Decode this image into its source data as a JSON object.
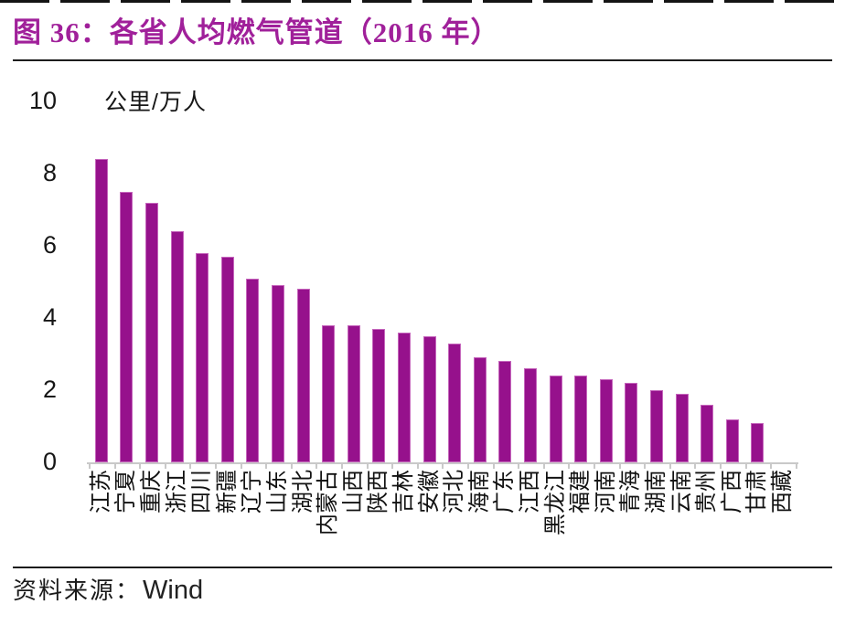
{
  "figure": {
    "title": "图 36：各省人均燃气管道（2016 年）",
    "title_color": "#a0209a",
    "footer_prefix": "资料来源：",
    "footer_source": "Wind"
  },
  "chart_data": {
    "type": "bar",
    "title": "图 36：各省人均燃气管道（2016 年）",
    "unit_label": "公里/万人",
    "categories": [
      "江苏",
      "宁夏",
      "重庆",
      "浙江",
      "四川",
      "新疆",
      "辽宁",
      "山东",
      "湖北",
      "内蒙古",
      "山西",
      "陕西",
      "吉林",
      "安徽",
      "河北",
      "海南",
      "广东",
      "江西",
      "黑龙江",
      "福建",
      "河南",
      "青海",
      "湖南",
      "云南",
      "贵州",
      "广西",
      "甘肃",
      "西藏"
    ],
    "values": [
      8.4,
      7.5,
      7.2,
      6.4,
      5.8,
      5.7,
      5.1,
      4.9,
      4.8,
      3.8,
      3.8,
      3.7,
      3.6,
      3.5,
      3.3,
      2.9,
      2.8,
      2.6,
      2.4,
      2.4,
      2.3,
      2.2,
      2.0,
      1.9,
      1.6,
      1.2,
      1.1,
      0
    ],
    "xlabel": "",
    "ylabel": "公里/万人",
    "ylim": [
      0,
      10
    ],
    "yticks": [
      0,
      2,
      4,
      6,
      8,
      10
    ],
    "grid": "off",
    "legend": "none",
    "bar_color": "#96118c",
    "source": "Wind"
  }
}
